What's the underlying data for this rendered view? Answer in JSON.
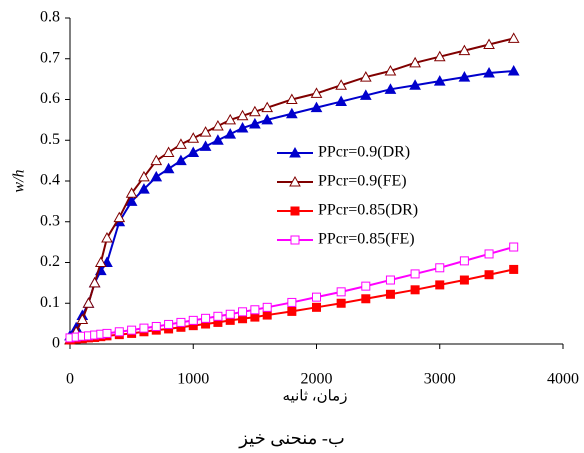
{
  "chart_data": {
    "type": "line",
    "x_label": "زمان، ثانیه",
    "y_label": "w/h",
    "caption": "ب- منحنی خیز",
    "x": [
      0,
      50,
      100,
      150,
      200,
      250,
      300,
      400,
      500,
      600,
      700,
      800,
      900,
      1000,
      1100,
      1200,
      1300,
      1400,
      1500,
      1600,
      1800,
      2000,
      2200,
      2400,
      2600,
      2800,
      3000,
      3200,
      3400,
      3600
    ],
    "series": [
      {
        "name": "PPcr=0.9(DR)",
        "color": "#0000cc",
        "marker": "triangle",
        "filled": true,
        "values": [
          0.02,
          0.04,
          0.07,
          0.1,
          0.15,
          0.18,
          0.2,
          0.3,
          0.35,
          0.38,
          0.41,
          0.43,
          0.45,
          0.47,
          0.485,
          0.5,
          0.515,
          0.53,
          0.54,
          0.55,
          0.565,
          0.58,
          0.595,
          0.61,
          0.625,
          0.635,
          0.645,
          0.655,
          0.665,
          0.67
        ]
      },
      {
        "name": "PPcr=0.9(FE)",
        "color": "#800000",
        "marker": "triangle",
        "filled": false,
        "values": [
          0.01,
          0.03,
          0.06,
          0.1,
          0.15,
          0.2,
          0.26,
          0.31,
          0.37,
          0.41,
          0.45,
          0.47,
          0.49,
          0.505,
          0.52,
          0.535,
          0.55,
          0.56,
          0.57,
          0.58,
          0.6,
          0.615,
          0.635,
          0.655,
          0.67,
          0.69,
          0.705,
          0.72,
          0.735,
          0.75
        ]
      },
      {
        "name": "PPcr=0.85(DR)",
        "color": "#ff0000",
        "marker": "square",
        "filled": true,
        "values": [
          0.01,
          0.012,
          0.013,
          0.015,
          0.016,
          0.018,
          0.02,
          0.023,
          0.026,
          0.03,
          0.034,
          0.037,
          0.041,
          0.045,
          0.049,
          0.053,
          0.058,
          0.062,
          0.066,
          0.071,
          0.08,
          0.09,
          0.1,
          0.111,
          0.122,
          0.133,
          0.145,
          0.157,
          0.17,
          0.183
        ]
      },
      {
        "name": "PPcr=0.85(FE)",
        "color": "#ff00ff",
        "marker": "square",
        "filled": false,
        "values": [
          0.015,
          0.017,
          0.019,
          0.02,
          0.022,
          0.024,
          0.026,
          0.03,
          0.034,
          0.039,
          0.043,
          0.048,
          0.053,
          0.058,
          0.063,
          0.068,
          0.073,
          0.079,
          0.084,
          0.09,
          0.102,
          0.115,
          0.128,
          0.142,
          0.157,
          0.172,
          0.187,
          0.204,
          0.221,
          0.238
        ]
      }
    ],
    "xlim": [
      0,
      4000
    ],
    "xticks": [
      0,
      1000,
      2000,
      3000,
      4000
    ],
    "ylim": [
      0,
      0.8
    ],
    "yticks": [
      0,
      0.1,
      0.2,
      0.3,
      0.4,
      0.5,
      0.6,
      0.7,
      0.8
    ],
    "grid": false
  }
}
